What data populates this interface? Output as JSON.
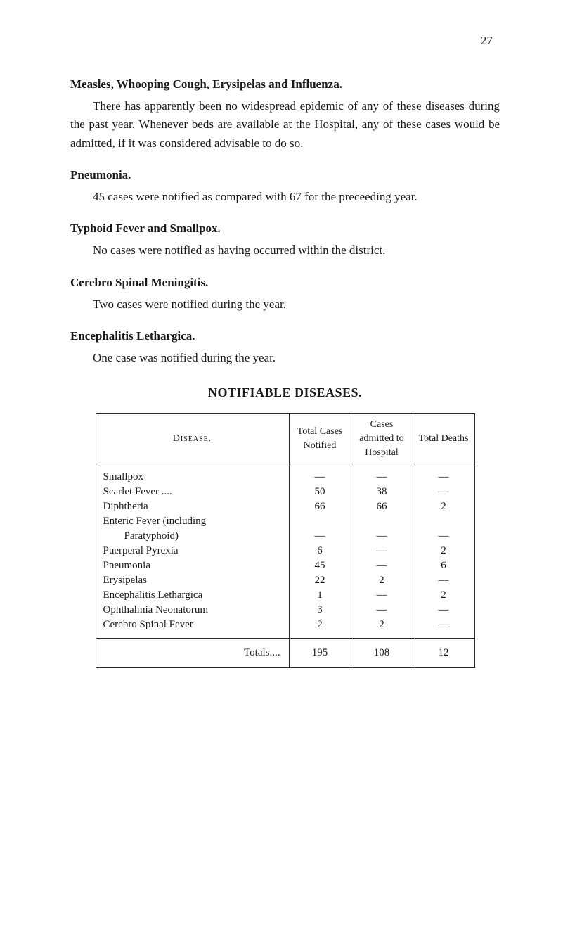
{
  "page_number": "27",
  "sections": {
    "measles": {
      "heading": "Measles, Whooping Cough, Erysipelas and Influenza.",
      "body": "There has apparently been no widespread epidemic of any of these diseases during the past year. Whenever beds are available at the Hospital, any of these cases would be admitted, if it was considered advisable to do so."
    },
    "pneumonia": {
      "heading": "Pneumonia.",
      "body": "45 cases were notified as compared with 67 for the preceeding year."
    },
    "typhoid": {
      "heading": "Typhoid Fever and Smallpox.",
      "body": "No cases were notified as having occurred within the district."
    },
    "cerebro": {
      "heading": "Cerebro Spinal Meningitis.",
      "body": "Two cases were notified during the year."
    },
    "encephalitis": {
      "heading": "Encephalitis Lethargica.",
      "body": "One case was notified during the year."
    }
  },
  "table": {
    "title": "NOTIFIABLE DISEASES.",
    "headers": {
      "disease": "Disease.",
      "total_cases": "Total Cases Notified",
      "admitted": "Cases admitted to Hospital",
      "deaths": "Total Deaths"
    },
    "rows": [
      {
        "disease": "Smallpox",
        "total": "—",
        "admitted": "—",
        "deaths": "—",
        "indent": false
      },
      {
        "disease": "Scarlet Fever ....",
        "total": "50",
        "admitted": "38",
        "deaths": "—",
        "indent": false
      },
      {
        "disease": "Diphtheria",
        "total": "66",
        "admitted": "66",
        "deaths": "2",
        "indent": false
      },
      {
        "disease": "Enteric Fever (including",
        "total": "",
        "admitted": "",
        "deaths": "",
        "indent": false
      },
      {
        "disease": "Paratyphoid)",
        "total": "—",
        "admitted": "—",
        "deaths": "—",
        "indent": true
      },
      {
        "disease": "Puerperal Pyrexia",
        "total": "6",
        "admitted": "—",
        "deaths": "2",
        "indent": false
      },
      {
        "disease": "Pneumonia",
        "total": "45",
        "admitted": "—",
        "deaths": "6",
        "indent": false
      },
      {
        "disease": "Erysipelas",
        "total": "22",
        "admitted": "2",
        "deaths": "—",
        "indent": false
      },
      {
        "disease": "Encephalitis Lethargica",
        "total": "1",
        "admitted": "—",
        "deaths": "2",
        "indent": false
      },
      {
        "disease": "Ophthalmia Neonatorum",
        "total": "3",
        "admitted": "—",
        "deaths": "—",
        "indent": false
      },
      {
        "disease": "Cerebro Spinal Fever",
        "total": "2",
        "admitted": "2",
        "deaths": "—",
        "indent": false
      }
    ],
    "totals": {
      "label": "Totals....",
      "total": "195",
      "admitted": "108",
      "deaths": "12"
    }
  }
}
